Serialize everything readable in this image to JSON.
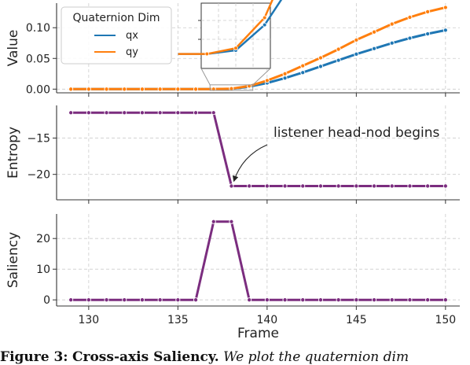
{
  "chart_data": [
    {
      "type": "line",
      "ylabel": "Value",
      "ylim": [
        -0.006,
        0.14
      ],
      "yticks": [
        0.0,
        0.05,
        0.1
      ],
      "ytick_labels": [
        "0.00",
        "0.05",
        "0.10"
      ],
      "legend": {
        "title": "Quaternion Dim",
        "placement": "top-left"
      },
      "x": [
        129,
        130,
        131,
        132,
        133,
        134,
        135,
        136,
        137,
        138,
        139,
        140,
        141,
        142,
        143,
        144,
        145,
        146,
        147,
        148,
        149,
        150
      ],
      "series": [
        {
          "name": "qx",
          "color": "#1f77b4",
          "values": [
            0,
            0,
            0,
            0,
            0,
            0,
            0,
            0,
            0,
            0.0005,
            0.004,
            0.01,
            0.018,
            0.027,
            0.037,
            0.047,
            0.057,
            0.066,
            0.075,
            0.083,
            0.09,
            0.096
          ]
        },
        {
          "name": "qy",
          "color": "#ff7f0e",
          "values": [
            0,
            0,
            0,
            0,
            0,
            0,
            0,
            0,
            0,
            0.0008,
            0.005,
            0.014,
            0.025,
            0.038,
            0.051,
            0.065,
            0.08,
            0.093,
            0.106,
            0.117,
            0.126,
            0.133
          ]
        }
      ],
      "inset": {
        "xlim": [
          136.8,
          139.2
        ],
        "ylim": [
          -0.002,
          0.007
        ],
        "placement": "top-center"
      }
    },
    {
      "type": "line",
      "ylabel": "Entropy",
      "ylim": [
        -23.5,
        -10.5
      ],
      "yticks": [
        -15,
        -20
      ],
      "ytick_labels": [
        "−15",
        "−20"
      ],
      "x": [
        129,
        130,
        131,
        132,
        133,
        134,
        135,
        136,
        137,
        138,
        139,
        140,
        141,
        142,
        143,
        144,
        145,
        146,
        147,
        148,
        149,
        150
      ],
      "series": [
        {
          "color": "#7b2d7f",
          "values": [
            -11.5,
            -11.5,
            -11.5,
            -11.5,
            -11.5,
            -11.5,
            -11.5,
            -11.5,
            -11.5,
            -21.6,
            -21.6,
            -21.6,
            -21.6,
            -21.6,
            -21.6,
            -21.6,
            -21.6,
            -21.6,
            -21.6,
            -21.6,
            -21.6,
            -21.6
          ]
        }
      ],
      "annotation": {
        "text": "listener head-nod begins",
        "x": 138,
        "y": -21.6
      }
    },
    {
      "type": "line",
      "ylabel": "Saliency",
      "xlabel": "Frame",
      "ylim": [
        -2,
        28
      ],
      "yticks": [
        0,
        10,
        20
      ],
      "ytick_labels": [
        "0",
        "10",
        "20"
      ],
      "xlim": [
        128.2,
        150.8
      ],
      "xticks": [
        130,
        135,
        140,
        145,
        150
      ],
      "xtick_labels": [
        "130",
        "135",
        "140",
        "145",
        "150"
      ],
      "x": [
        129,
        130,
        131,
        132,
        133,
        134,
        135,
        136,
        137,
        138,
        139,
        140,
        141,
        142,
        143,
        144,
        145,
        146,
        147,
        148,
        149,
        150
      ],
      "series": [
        {
          "color": "#7b2d7f",
          "values": [
            0,
            0,
            0,
            0,
            0,
            0,
            0,
            0,
            25.5,
            25.5,
            0,
            0,
            0,
            0,
            0,
            0,
            0,
            0,
            0,
            0,
            0,
            0
          ]
        }
      ]
    }
  ],
  "caption": {
    "label": "Figure 3:",
    "title": "Cross-axis Saliency.",
    "text": "We plot the quaternion dim"
  }
}
